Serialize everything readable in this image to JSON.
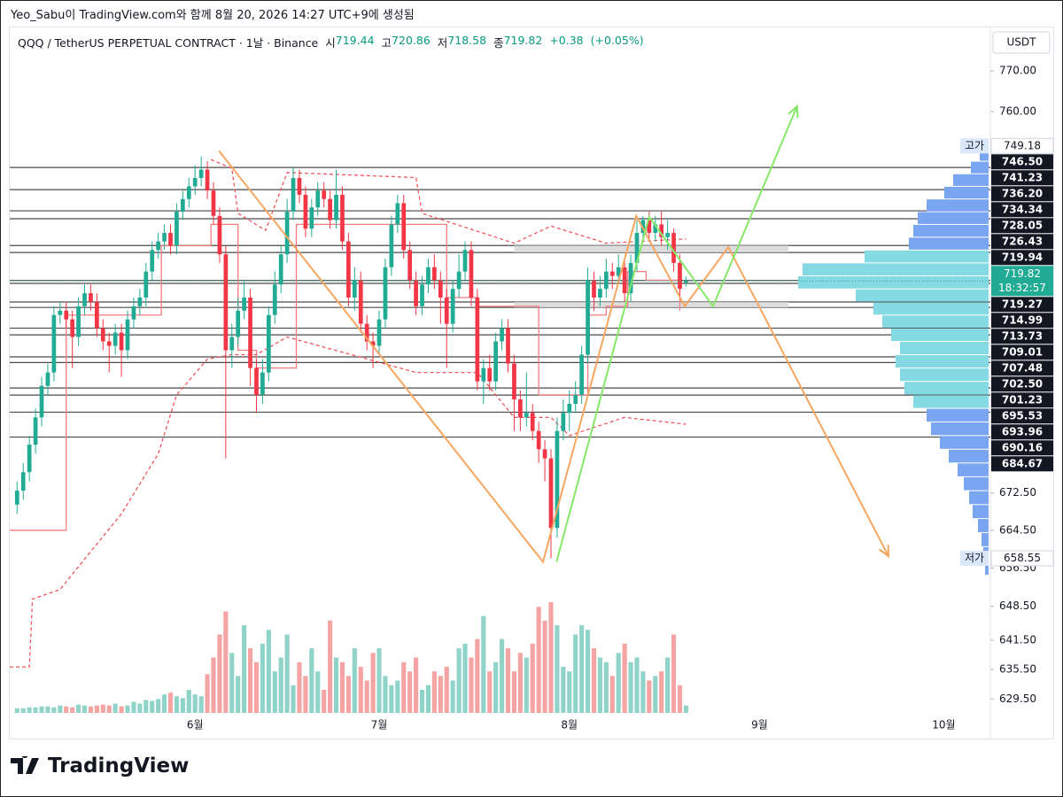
{
  "page": {
    "caption": "Yeo_Sabu이 TradingView.com와 함께 8월 20, 2026 14:27 UTC+9에 생성됨",
    "brand": "TradingView"
  },
  "chart_data": {
    "type": "candlestick",
    "title": "QQQ / TetherUS PERPETUAL CONTRACT · 1날 · Binance",
    "ohlc_labels": [
      "시",
      "고",
      "저",
      "종"
    ],
    "change": {
      "value": 0.38,
      "label": "+0.38"
    },
    "change_percent": {
      "value": 0.05,
      "label": "(+0.05%)"
    },
    "currency": "USDT",
    "countdown": "18:32:57",
    "log_scale": true,
    "grid": false,
    "xlim": [
      0.8,
      160.6
    ],
    "xticks": [
      {
        "value": 31,
        "label": "6월"
      },
      {
        "value": 61,
        "label": "7월"
      },
      {
        "value": 92,
        "label": "8월"
      },
      {
        "value": 123,
        "label": "9월"
      },
      {
        "value": 153,
        "label": "10월"
      }
    ],
    "ylim": [
      626.7,
      780.8
    ],
    "yticks": [
      {
        "value": 770,
        "label": "770.00"
      },
      {
        "value": 760,
        "label": "760.00"
      },
      {
        "value": 672.5,
        "label": "672.50"
      },
      {
        "value": 664.5,
        "label": "664.50"
      },
      {
        "value": 656.5,
        "label": "656.50"
      },
      {
        "value": 648.5,
        "label": "648.50"
      },
      {
        "value": 641.5,
        "label": "641.50"
      },
      {
        "value": 635.5,
        "label": "635.50"
      },
      {
        "value": 629.5,
        "label": "629.50"
      }
    ],
    "up_color": "#22ab94",
    "down_color": "#f23645",
    "volume_up_color": "#8fd3c9",
    "volume_down_color": "#f5a3a3",
    "x": [
      2,
      3,
      4,
      5,
      6,
      7,
      8,
      9,
      10,
      11,
      12,
      13,
      14,
      15,
      16,
      17,
      18,
      19,
      20,
      21,
      22,
      23,
      24,
      25,
      26,
      27,
      28,
      29,
      30,
      31,
      32,
      33,
      34,
      35,
      36,
      37,
      38,
      39,
      40,
      41,
      42,
      43,
      44,
      45,
      46,
      47,
      48,
      49,
      50,
      51,
      52,
      53,
      54,
      55,
      56,
      57,
      58,
      59,
      60,
      61,
      62,
      63,
      64,
      65,
      66,
      67,
      68,
      69,
      70,
      71,
      72,
      73,
      74,
      75,
      76,
      77,
      78,
      79,
      80,
      81,
      82,
      83,
      84,
      85,
      86,
      87,
      88,
      89,
      90,
      91,
      92,
      93,
      94,
      95,
      96,
      97,
      98,
      99,
      100,
      101,
      102,
      103,
      104,
      105,
      106,
      107,
      108,
      109,
      110,
      111
    ],
    "open": [
      670,
      673,
      677,
      683,
      689,
      696,
      699,
      712,
      713,
      711,
      707,
      714,
      717,
      715,
      709,
      706,
      705,
      708,
      704,
      711,
      714,
      716,
      722,
      727,
      729,
      731,
      728,
      736,
      739,
      742,
      744,
      746,
      741,
      735,
      726,
      704,
      707,
      713,
      716,
      700,
      694,
      699,
      712,
      719,
      726,
      736,
      744,
      740,
      732,
      737,
      741,
      739,
      734,
      740,
      729,
      716,
      720,
      710,
      706,
      705,
      711,
      723,
      733,
      738,
      727,
      720,
      714,
      719,
      723,
      720,
      716,
      710,
      718,
      722,
      727,
      716,
      697,
      700,
      697,
      706,
      709,
      701,
      693,
      689,
      690,
      686,
      682,
      680,
      665,
      686,
      690,
      692,
      694,
      703,
      720,
      716,
      718,
      722,
      721,
      723,
      717,
      724,
      731,
      734,
      731,
      733,
      730,
      731,
      724,
      719.44
    ],
    "high": [
      675,
      679,
      685,
      691,
      698,
      701,
      714,
      715,
      715,
      713,
      716,
      719,
      719,
      717,
      711,
      708,
      710,
      710,
      713,
      716,
      718,
      724,
      729,
      731,
      733,
      733,
      738,
      741,
      744,
      747,
      749.18,
      748,
      743,
      737,
      728,
      710,
      716,
      720,
      718,
      702,
      702,
      714,
      722,
      728,
      739,
      746.5,
      746,
      742,
      739,
      743,
      743,
      741,
      746,
      742,
      731,
      723,
      722,
      712,
      708,
      713,
      725,
      735,
      740,
      740,
      729,
      722,
      721,
      725,
      726,
      722,
      718,
      720,
      726,
      729,
      729,
      718,
      702,
      703,
      708,
      711,
      711,
      703,
      695,
      699,
      692,
      688,
      684,
      682,
      689,
      693,
      695,
      697,
      705,
      723,
      722,
      721,
      725,
      724,
      726,
      725,
      726,
      734,
      735,
      736,
      735,
      736,
      734,
      732,
      726,
      720.86
    ],
    "low": [
      668,
      671,
      675,
      681,
      687,
      694,
      697,
      710,
      709,
      700,
      705,
      712,
      713,
      707,
      704,
      699,
      703,
      698,
      702,
      709,
      712,
      714,
      720,
      725,
      727,
      726,
      726,
      734,
      737,
      740,
      742,
      739,
      733,
      724,
      680,
      700,
      705,
      711,
      696,
      690,
      692,
      697,
      710,
      717,
      724,
      734,
      738,
      730,
      730,
      735,
      737,
      732,
      732,
      727,
      714,
      713,
      708,
      704,
      700,
      703,
      709,
      721,
      731,
      725,
      718,
      712,
      712,
      717,
      718,
      710,
      700,
      708,
      716,
      720,
      714,
      695,
      692,
      695,
      695,
      704,
      699,
      686,
      686,
      687,
      684,
      679,
      675,
      658.55,
      663,
      684,
      686,
      690,
      692,
      701,
      713,
      714,
      716,
      718,
      719,
      715,
      715,
      722,
      729,
      729,
      729,
      728,
      727,
      722,
      716,
      718.58
    ],
    "close": [
      673,
      677,
      683,
      689,
      696,
      699,
      712,
      713,
      711,
      707,
      714,
      717,
      715,
      709,
      706,
      705,
      708,
      704,
      711,
      714,
      716,
      722,
      727,
      729,
      731,
      728,
      736,
      739,
      742,
      744,
      746,
      741,
      735,
      726,
      704,
      707,
      713,
      716,
      700,
      694,
      699,
      712,
      719,
      726,
      736,
      744,
      740,
      732,
      737,
      741,
      739,
      734,
      740,
      729,
      716,
      720,
      710,
      706,
      705,
      711,
      723,
      733,
      738,
      727,
      720,
      714,
      719,
      723,
      720,
      716,
      710,
      718,
      722,
      727,
      716,
      697,
      700,
      697,
      706,
      709,
      701,
      693,
      689,
      690,
      686,
      682,
      680,
      665,
      686,
      690,
      692,
      694,
      703,
      720,
      716,
      718,
      722,
      721,
      723,
      717,
      724,
      731,
      734,
      731,
      733,
      730,
      731,
      724,
      718,
      719.82
    ],
    "volume": [
      5,
      5,
      6,
      6,
      7,
      7,
      6,
      8,
      7,
      6,
      9,
      8,
      7,
      8,
      9,
      8,
      10,
      7,
      8,
      12,
      10,
      14,
      13,
      15,
      20,
      22,
      18,
      16,
      25,
      20,
      18,
      42,
      60,
      85,
      110,
      65,
      40,
      95,
      70,
      55,
      75,
      90,
      45,
      60,
      85,
      30,
      55,
      40,
      70,
      45,
      25,
      100,
      60,
      55,
      40,
      70,
      50,
      35,
      65,
      70,
      40,
      30,
      35,
      55,
      45,
      60,
      25,
      30,
      45,
      40,
      50,
      35,
      70,
      75,
      60,
      80,
      105,
      45,
      55,
      80,
      70,
      45,
      65,
      60,
      75,
      115,
      100,
      120,
      95,
      50,
      45,
      85,
      95,
      90,
      70,
      60,
      55,
      40,
      65,
      75,
      55,
      60,
      45,
      35,
      40,
      45,
      60,
      85,
      30,
      8
    ],
    "level_color": "#4a4a4a",
    "levels": [
      {
        "value": 746.5,
        "label": "746.50"
      },
      {
        "value": 741.23,
        "label": "741.23"
      },
      {
        "value": 736.2,
        "label": "736.20"
      },
      {
        "value": 734.34,
        "label": "734.34"
      },
      {
        "value": 728.05,
        "label": "728.05"
      },
      {
        "value": 726.43,
        "label": "726.43"
      },
      {
        "value": 719.94,
        "label": "719.94"
      },
      {
        "value": 719.27,
        "label": "719.27"
      },
      {
        "value": 714.99,
        "label": "714.99"
      },
      {
        "value": 713.73,
        "label": "713.73"
      },
      {
        "value": 709.01,
        "label": "709.01"
      },
      {
        "value": 707.48,
        "label": "707.48"
      },
      {
        "value": 702.5,
        "label": "702.50"
      },
      {
        "value": 701.23,
        "label": "701.23"
      },
      {
        "value": 695.53,
        "label": "695.53"
      },
      {
        "value": 693.96,
        "label": "693.96"
      },
      {
        "value": 690.16,
        "label": "690.16"
      },
      {
        "value": 684.67,
        "label": "684.67"
      }
    ],
    "high_marker": {
      "label": "고가",
      "value": 749.18
    },
    "low_marker": {
      "label": "저가",
      "value": 658.55
    },
    "zones": [
      {
        "color": "#d6d6d6",
        "x": [
          83,
          127.7
        ],
        "y": [
          726.43,
          728.05
        ]
      },
      {
        "color": "#d6d6d6",
        "x": [
          83,
          127.7
        ],
        "y": [
          713.73,
          714.99
        ]
      }
    ],
    "overlays": [
      {
        "shape": "step",
        "style": "solid",
        "color": "#f77c80",
        "x": [
          0.8,
          10,
          25.5,
          33.6,
          38,
          41,
          47.5,
          61,
          72,
          77,
          87,
          95,
          98,
          101.5,
          104.5,
          110
        ],
        "values": [
          664.5,
          712,
          728,
          733,
          704,
          700,
          733,
          733,
          716,
          714,
          694,
          712,
          714,
          722,
          720,
          713
        ]
      },
      {
        "shape": "line",
        "style": "dashed",
        "color": "#f0565c",
        "x": [
          0.8,
          4,
          4.5,
          9,
          14,
          19,
          25,
          28,
          33,
          37,
          41,
          46,
          67,
          77,
          83,
          89,
          92,
          101,
          111
        ],
        "values": [
          636,
          636,
          650,
          652,
          660,
          668,
          681,
          694,
          702,
          703,
          703,
          707,
          699,
          699,
          689,
          689,
          685,
          689,
          687.5
        ]
      },
      {
        "shape": "line",
        "style": "dashed",
        "color": "#f0565c",
        "x": [
          33.6,
          37,
          38,
          42.5,
          46,
          67,
          68,
          83,
          89,
          98,
          111
        ],
        "values": [
          748.4,
          746.3,
          735.6,
          731.6,
          745.3,
          744.1,
          735.6,
          728.6,
          732.6,
          728.6,
          729.6
        ]
      }
    ],
    "profile": {
      "bins": [
        655,
        658,
        661,
        664,
        667,
        670,
        673,
        676,
        679,
        682,
        685,
        688,
        691,
        694,
        697,
        700,
        703,
        706,
        709,
        712,
        715,
        718,
        721,
        724,
        727,
        730,
        733,
        736,
        739,
        742,
        745,
        748,
        751
      ],
      "values": [
        4,
        6,
        8,
        12,
        18,
        22,
        28,
        35,
        45,
        55,
        65,
        70,
        85,
        95,
        100,
        105,
        100,
        110,
        120,
        130,
        150,
        215,
        210,
        140,
        90,
        85,
        80,
        70,
        50,
        40,
        20,
        10
      ],
      "colors": [
        "#7aa5f0",
        "#7aa5f0",
        "#7aa5f0",
        "#7aa5f0",
        "#7aa5f0",
        "#7aa5f0",
        "#7aa5f0",
        "#7aa5f0",
        "#7aa5f0",
        "#7aa5f0",
        "#7aa5f0",
        "#7aa5f0",
        "#84d9e2",
        "#84d9e2",
        "#84d9e2",
        "#84d9e2",
        "#84d9e2",
        "#84d9e2",
        "#84d9e2",
        "#84d9e2",
        "#84d9e2",
        "#84d9e2",
        "#84d9e2",
        "#84d9e2",
        "#7aa5f0",
        "#7aa5f0",
        "#7aa5f0",
        "#7aa5f0",
        "#7aa5f0",
        "#7aa5f0",
        "#7aa5f0",
        "#7aa5f0"
      ]
    },
    "drawings": [
      {
        "color": "#f7a660",
        "x": [
          34.9,
          87.7,
          102.9,
          110.8,
          117.9,
          144
        ],
        "values": [
          750.5,
          657.8,
          735,
          714,
          727.7,
          659
        ]
      },
      {
        "color": "#86e868",
        "x": [
          89.9,
          105,
          115.4,
          129.1
        ],
        "values": [
          657.8,
          734.8,
          714,
          761.3
        ]
      }
    ]
  }
}
